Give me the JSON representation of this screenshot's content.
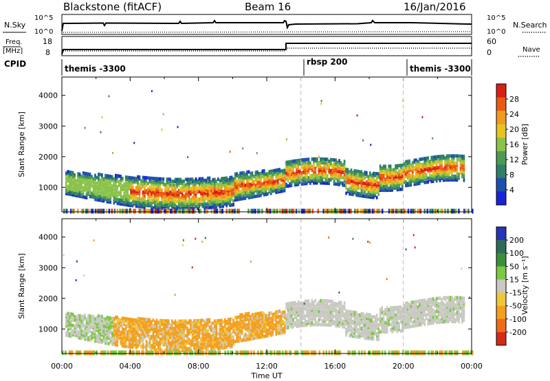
{
  "header": {
    "station": "Blackstone (fitACF)",
    "beam": "Beam 16",
    "date": "16/Jan/2016"
  },
  "sky_panel": {
    "left_label": "N.Sky",
    "left_ticks": [
      "10^5",
      "10^0"
    ],
    "right_label": "N.Search",
    "right_ticks": [
      "10^5",
      "10^0"
    ]
  },
  "freq_panel": {
    "left_label_1": "Freq.",
    "left_label_2": "[MHz]",
    "left_ticks": [
      "18",
      "8"
    ],
    "right_label": "Nave",
    "right_ticks": [
      "60",
      "0"
    ]
  },
  "cpid_panel": {
    "label": "CPID",
    "modes": [
      "themis -3300",
      "rbsp 200",
      "themis -3300"
    ]
  },
  "colors": {
    "power_scale": [
      "#1a22d6",
      "#1e4fb0",
      "#2f7f68",
      "#4f9a52",
      "#8bc34a",
      "#e8c320",
      "#f19a20",
      "#ea5a15",
      "#d92015"
    ],
    "velocity_scale": [
      "#2634b8",
      "#2e6c58",
      "#3a8f3a",
      "#7cc843",
      "#c9c9c2",
      "#f0c63a",
      "#f3a020",
      "#ec6b16",
      "#d42a16"
    ]
  },
  "chart_data": [
    {
      "type": "heatmap",
      "name": "power",
      "ylabel": "Slant Range [km]",
      "xlim": [
        "00:00",
        "24:00"
      ],
      "ylim": [
        200,
        4600
      ],
      "yticks": [
        "1000",
        "2000",
        "3000",
        "4000"
      ],
      "colorbar_label": "Power [dB]",
      "colorbar_ticks": [
        "4",
        "8",
        "12",
        "16",
        "20",
        "24",
        "28"
      ],
      "mode_boundaries_ut": [
        14.0,
        20.0
      ]
    },
    {
      "type": "heatmap",
      "name": "velocity",
      "ylabel": "Slant Range [km]",
      "xlabel": "Time UT",
      "xlim": [
        "00:00",
        "24:00"
      ],
      "ylim": [
        200,
        4600
      ],
      "xticks": [
        "00:00",
        "04:00",
        "08:00",
        "12:00",
        "16:00",
        "20:00",
        "00:00"
      ],
      "yticks": [
        "1000",
        "2000",
        "3000",
        "4000"
      ],
      "colorbar_label": "Velocity [m s⁻¹]",
      "colorbar_ticks": [
        "200",
        "100",
        "50",
        "15",
        "-15",
        "-50",
        "-100",
        "-200"
      ],
      "mode_boundaries_ut": [
        14.0,
        20.0
      ]
    }
  ]
}
